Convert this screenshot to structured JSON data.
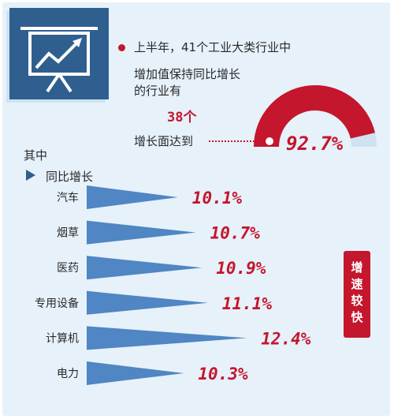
{
  "header": {
    "headline": "上半年，41个工业大类行业中",
    "sub1": "增加值保持同比增长",
    "sub2": "的行业有",
    "count": "38个",
    "reach_label": "增长面达到",
    "reach_value": "92.7%"
  },
  "section": {
    "qizhong": "其中",
    "yoy": "同比增长"
  },
  "badge_text": "增速较快",
  "colors": {
    "accent": "#c4162c",
    "navy": "#2f5f8f",
    "triangle": "#4f86c3",
    "background": "#e6f1fa"
  },
  "icons": {
    "logo": "growth-chart-board-icon",
    "marker": "triangle-right-icon"
  },
  "gauge_value": 0.927,
  "chart_data": {
    "type": "bar",
    "categories": [
      "汽车",
      "烟草",
      "医药",
      "专用设备",
      "计算机",
      "电力"
    ],
    "values": [
      10.1,
      10.7,
      10.9,
      11.1,
      12.4,
      10.3
    ],
    "value_labels": [
      "10.1%",
      "10.7%",
      "10.9%",
      "11.1%",
      "12.4%",
      "10.3%"
    ]
  }
}
